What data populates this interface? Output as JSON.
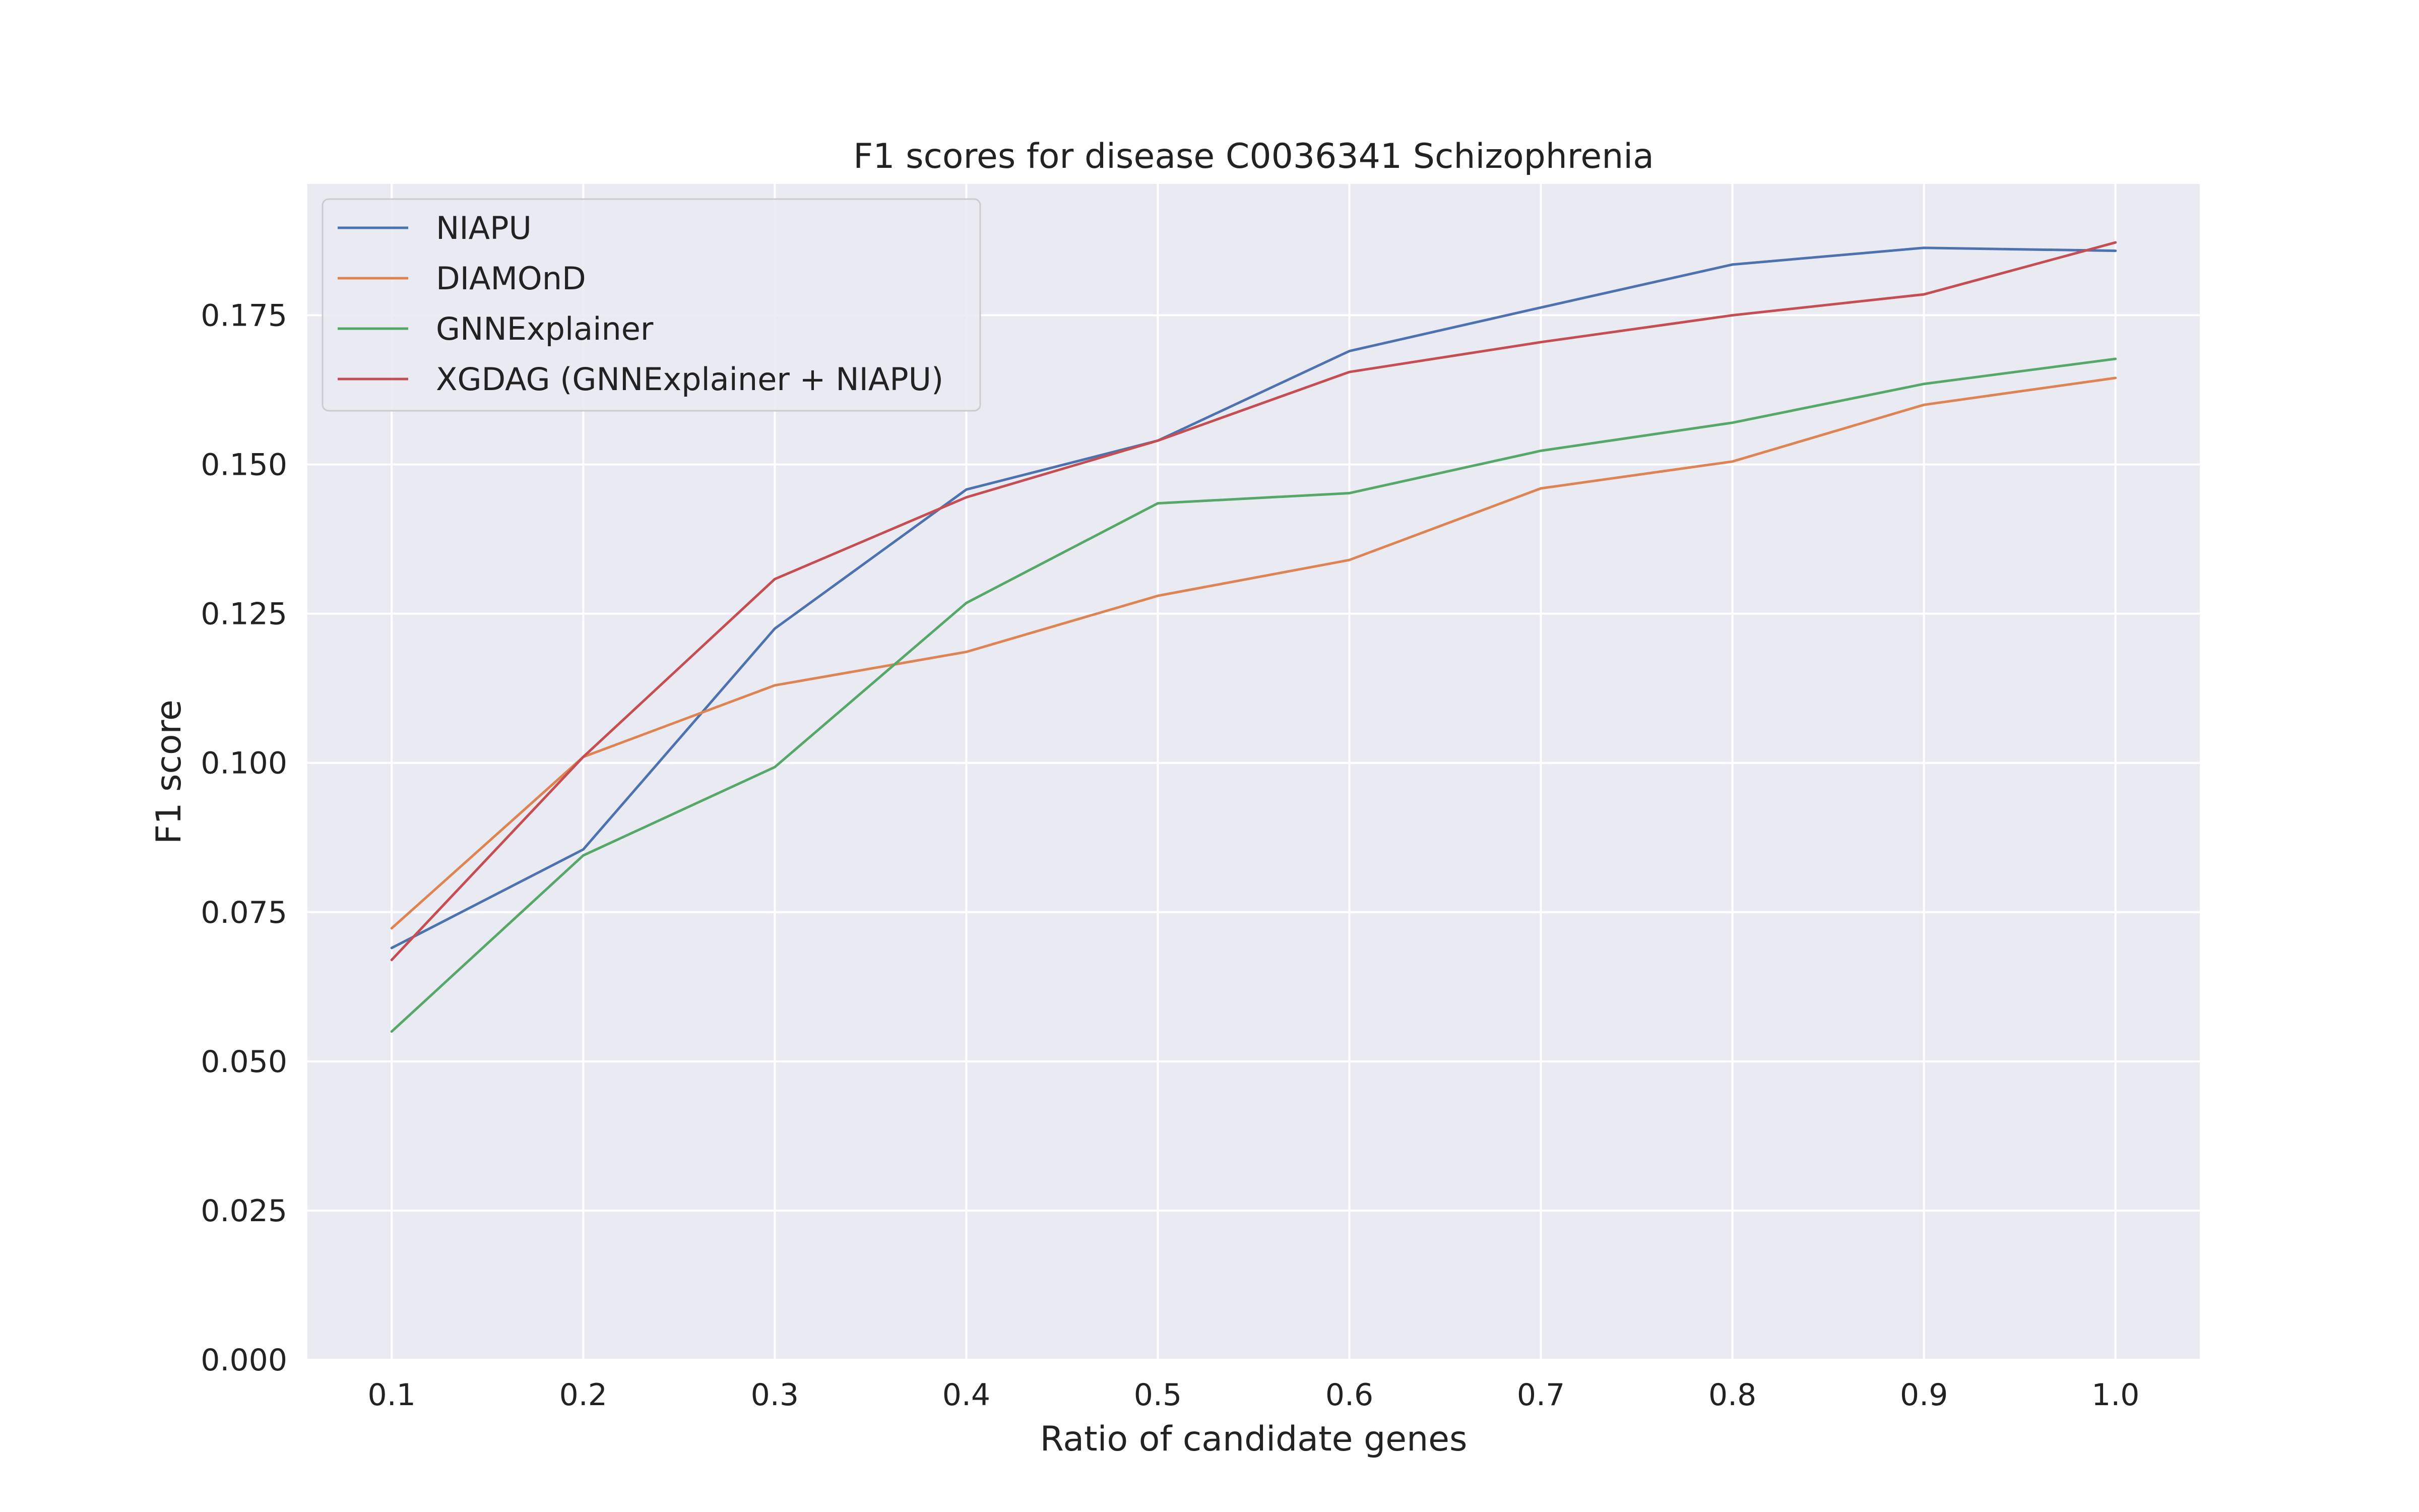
{
  "chart_data": {
    "type": "line",
    "title": "F1 scores for disease C0036341 Schizophrenia",
    "xlabel": "Ratio of candidate genes",
    "ylabel": "F1 score",
    "x": [
      0.1,
      0.2,
      0.3,
      0.4,
      0.5,
      0.6,
      0.7,
      0.8,
      0.9,
      1.0
    ],
    "x_tick_labels": [
      "0.1",
      "0.2",
      "0.3",
      "0.4",
      "0.5",
      "0.6",
      "0.7",
      "0.8",
      "0.9",
      "1.0"
    ],
    "y_ticks": [
      0.0,
      0.025,
      0.05,
      0.075,
      0.1,
      0.125,
      0.15,
      0.175
    ],
    "y_tick_labels": [
      "0.000",
      "0.025",
      "0.050",
      "0.075",
      "0.100",
      "0.125",
      "0.150",
      "0.175"
    ],
    "xlim": [
      0.056,
      1.044
    ],
    "ylim": [
      0.0,
      0.197
    ],
    "grid": true,
    "legend_position": "top-left",
    "background_color": "#eaeaf2",
    "grid_color": "#ffffff",
    "series": [
      {
        "name": "NIAPU",
        "color": "#4c72b0",
        "values": [
          0.069,
          0.0855,
          0.1225,
          0.1458,
          0.154,
          0.169,
          0.1763,
          0.1835,
          0.1863,
          0.1858
        ]
      },
      {
        "name": "DIAMOnD",
        "color": "#dd8452",
        "values": [
          0.0723,
          0.101,
          0.113,
          0.1186,
          0.128,
          0.134,
          0.146,
          0.1505,
          0.16,
          0.1645
        ]
      },
      {
        "name": "GNNExplainer",
        "color": "#55a868",
        "values": [
          0.055,
          0.0845,
          0.0993,
          0.1268,
          0.1435,
          0.1452,
          0.1523,
          0.157,
          0.1635,
          0.1677
        ]
      },
      {
        "name": "XGDAG (GNNExplainer + NIAPU)",
        "color": "#c44e52",
        "values": [
          0.067,
          0.101,
          0.1308,
          0.1445,
          0.154,
          0.1655,
          0.1705,
          0.175,
          0.1785,
          0.1872
        ]
      }
    ]
  }
}
